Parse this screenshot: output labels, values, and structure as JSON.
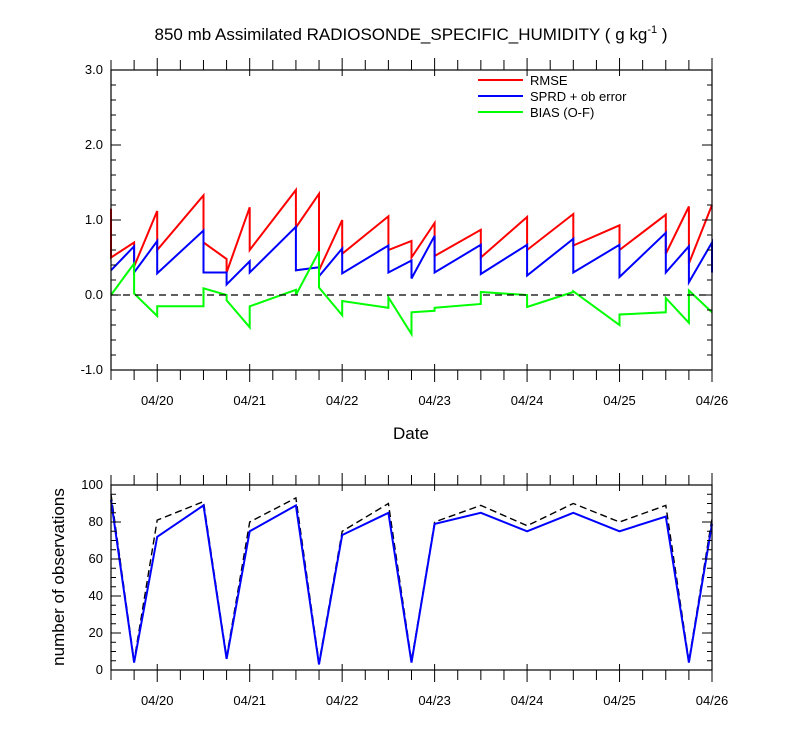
{
  "colors": {
    "rmse": "#ff0000",
    "sprd": "#0000ff",
    "bias": "#00ff00",
    "axis": "#000000",
    "dashed": "#000000",
    "background": "#ffffff"
  },
  "chart_data": [
    {
      "type": "line",
      "title": "850 mb Assimilated RADIOSONDE_SPECIFIC_HUMIDITY ( g kg",
      "title_sup": "-1",
      "title_end": " )",
      "xlabel": "Date",
      "ylabel": "",
      "x_unit": "days since 04/20 (tick labels show dates)",
      "xlim": [
        -0.5,
        6.0
      ],
      "ylim": [
        -1.0,
        3.0
      ],
      "y_ticks": [
        -1.0,
        0.0,
        1.0,
        2.0,
        3.0
      ],
      "y_tick_labels": [
        "-1.0",
        "0.0",
        "1.0",
        "2.0",
        "3.0"
      ],
      "x_ticks": [
        0,
        1,
        2,
        3,
        4,
        5,
        6
      ],
      "x_tick_labels": [
        "04/20",
        "04/21",
        "04/22",
        "04/23",
        "04/24",
        "04/25",
        "04/26"
      ],
      "reference_line": 0.0,
      "legend_position": "top-right",
      "series": [
        {
          "name": "RMSE",
          "color_key": "rmse",
          "x": [
            -0.5,
            -0.5,
            -0.25,
            -0.25,
            0.0,
            0.0,
            0.5,
            0.5,
            0.75,
            0.75,
            1.0,
            1.0,
            1.5,
            1.5,
            1.75,
            1.75,
            2.0,
            2.0,
            2.5,
            2.5,
            2.75,
            2.75,
            3.0,
            3.0,
            3.5,
            3.5,
            4.0,
            4.0,
            4.5,
            4.5,
            5.0,
            5.0,
            5.5,
            5.5,
            5.75,
            5.75,
            6.0
          ],
          "values": [
            1.15,
            0.5,
            0.7,
            0.38,
            1.12,
            0.6,
            1.33,
            0.7,
            0.48,
            0.3,
            1.17,
            0.6,
            1.4,
            0.9,
            1.35,
            0.33,
            1.0,
            0.55,
            1.05,
            0.6,
            0.72,
            0.5,
            0.96,
            0.52,
            0.87,
            0.5,
            1.04,
            0.6,
            1.08,
            0.66,
            0.93,
            0.6,
            1.07,
            0.55,
            1.18,
            0.42,
            1.2
          ]
        },
        {
          "name": "SPRD + ob error",
          "color_key": "sprd",
          "x": [
            -0.5,
            -0.25,
            -0.25,
            0.0,
            0.0,
            0.5,
            0.5,
            0.75,
            0.75,
            1.0,
            1.0,
            1.5,
            1.5,
            1.75,
            1.75,
            2.0,
            2.0,
            2.5,
            2.5,
            2.75,
            2.75,
            3.0,
            3.0,
            3.5,
            3.5,
            4.0,
            4.0,
            4.5,
            4.5,
            5.0,
            5.0,
            5.5,
            5.5,
            5.75,
            5.75,
            6.0,
            6.0
          ],
          "values": [
            0.33,
            0.65,
            0.3,
            0.72,
            0.29,
            0.86,
            0.3,
            0.3,
            0.14,
            0.45,
            0.3,
            0.91,
            0.33,
            0.37,
            0.25,
            0.62,
            0.29,
            0.66,
            0.3,
            0.46,
            0.22,
            0.79,
            0.3,
            0.67,
            0.28,
            0.67,
            0.26,
            0.75,
            0.3,
            0.67,
            0.24,
            0.83,
            0.3,
            0.65,
            0.17,
            0.7,
            0.3
          ]
        },
        {
          "name": "BIAS (O-F)",
          "color_key": "bias",
          "x": [
            -0.5,
            -0.25,
            -0.25,
            0.0,
            0.0,
            0.5,
            0.5,
            0.75,
            0.75,
            1.0,
            1.0,
            1.5,
            1.5,
            1.75,
            1.75,
            2.0,
            2.0,
            2.5,
            2.5,
            2.75,
            2.75,
            3.0,
            3.0,
            3.5,
            3.5,
            4.0,
            4.0,
            4.5,
            4.5,
            5.0,
            5.0,
            5.5,
            5.5,
            5.75,
            5.75,
            6.0
          ],
          "values": [
            0.0,
            0.42,
            0.02,
            -0.28,
            -0.15,
            -0.15,
            0.09,
            0.0,
            -0.07,
            -0.43,
            -0.15,
            0.07,
            0.0,
            0.58,
            0.1,
            -0.27,
            -0.08,
            -0.17,
            -0.03,
            -0.52,
            -0.23,
            -0.21,
            -0.17,
            -0.12,
            0.04,
            0.0,
            -0.16,
            0.04,
            0.05,
            -0.4,
            -0.26,
            -0.23,
            -0.04,
            -0.37,
            0.06,
            -0.23
          ]
        }
      ]
    },
    {
      "type": "line",
      "title": "",
      "xlabel": "",
      "ylabel": "number of observations",
      "xlim": [
        -0.5,
        6.0
      ],
      "ylim": [
        0,
        100
      ],
      "y_ticks": [
        0,
        20,
        40,
        60,
        80,
        100
      ],
      "y_tick_labels": [
        "0",
        "20",
        "40",
        "60",
        "80",
        "100"
      ],
      "x_ticks": [
        0,
        1,
        2,
        3,
        4,
        5,
        6
      ],
      "x_tick_labels": [
        "04/20",
        "04/21",
        "04/22",
        "04/23",
        "04/24",
        "04/25",
        "04/26"
      ],
      "series": [
        {
          "name": "",
          "style": "dashed",
          "color_key": "dashed",
          "x": [
            -0.5,
            -0.25,
            0.0,
            0.5,
            0.75,
            1.0,
            1.5,
            1.75,
            2.0,
            2.5,
            2.75,
            3.0,
            3.5,
            4.0,
            4.5,
            5.0,
            5.5,
            5.75,
            6.0
          ],
          "values": [
            95,
            5,
            81,
            91,
            7,
            80,
            93,
            4,
            75,
            90,
            5,
            80,
            89,
            78,
            90,
            80,
            89,
            5,
            82
          ]
        },
        {
          "name": "",
          "style": "solid",
          "color_key": "sprd",
          "x": [
            -0.5,
            -0.25,
            0.0,
            0.5,
            0.75,
            1.0,
            1.5,
            1.75,
            2.0,
            2.5,
            2.75,
            3.0,
            3.5,
            4.0,
            4.5,
            5.0,
            5.5,
            5.75,
            6.0
          ],
          "values": [
            92,
            4,
            72,
            89,
            6,
            75,
            89,
            3,
            73,
            85,
            4,
            79,
            85,
            75,
            85,
            75,
            83,
            4,
            79
          ]
        }
      ]
    }
  ]
}
